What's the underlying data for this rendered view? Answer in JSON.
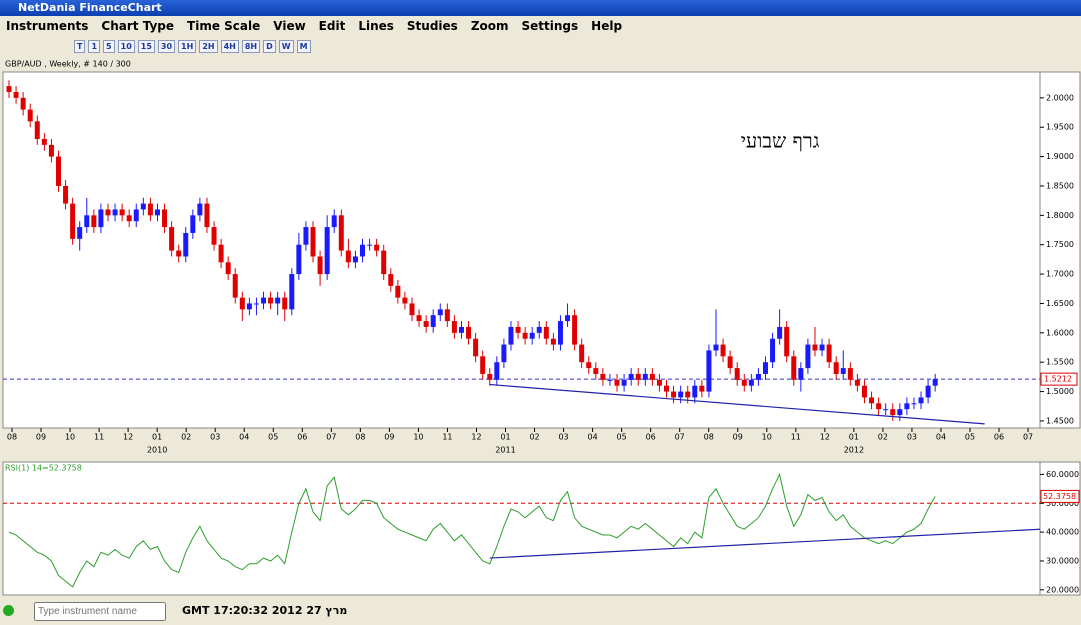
{
  "window": {
    "title": "NetDania FinanceChart"
  },
  "menu": [
    "Instruments",
    "Chart Type",
    "Time Scale",
    "View",
    "Edit",
    "Lines",
    "Studies",
    "Zoom",
    "Settings",
    "Help"
  ],
  "periods": [
    "T",
    "1",
    "5",
    "10",
    "15",
    "30",
    "1H",
    "2H",
    "4H",
    "8H",
    "D",
    "W",
    "M"
  ],
  "status": {
    "placeholder": "Type instrument name",
    "clock": "GMT 17:20:32 2012 מרץ 27"
  },
  "chart_data": {
    "type": "candlestick",
    "title": "GBP/AUD , Weekly, # 140 / 300",
    "annotation": "גרף שבועי",
    "up_color": "#1a1aff",
    "down_color": "#e00000",
    "ylim": [
      1.438,
      2.044
    ],
    "yticks": [
      {
        "value": 1.45,
        "label": "1.4500"
      },
      {
        "value": 1.5,
        "label": "1.5000"
      },
      {
        "value": 1.55,
        "label": "1.5500"
      },
      {
        "value": 1.6,
        "label": "1.6000"
      },
      {
        "value": 1.65,
        "label": "1.6500"
      },
      {
        "value": 1.7,
        "label": "1.7000"
      },
      {
        "value": 1.75,
        "label": "1.7500"
      },
      {
        "value": 1.8,
        "label": "1.8000"
      },
      {
        "value": 1.85,
        "label": "1.8500"
      },
      {
        "value": 1.9,
        "label": "1.9000"
      },
      {
        "value": 1.95,
        "label": "1.9500"
      },
      {
        "value": 2,
        "label": "2.0000"
      }
    ],
    "last_price": 1.5212,
    "months": [
      "08",
      "09",
      "10",
      "11",
      "12",
      "01",
      "02",
      "03",
      "04",
      "05",
      "06",
      "07",
      "08",
      "09",
      "10",
      "11",
      "12",
      "01",
      "02",
      "03",
      "04",
      "05",
      "06",
      "07",
      "08",
      "09",
      "10",
      "11",
      "12",
      "01",
      "02",
      "03",
      "04",
      "05",
      "06",
      "07"
    ],
    "years": [
      "2010",
      "2011",
      "2012"
    ],
    "trendline": {
      "start": [
        68,
        1.512
      ],
      "end": [
        138,
        1.445
      ]
    },
    "ohlc": [
      [
        2.02,
        2.03,
        2.0,
        2.01
      ],
      [
        2.01,
        2.02,
        1.99,
        2.0
      ],
      [
        2.0,
        2.01,
        1.97,
        1.98
      ],
      [
        1.98,
        1.99,
        1.95,
        1.96
      ],
      [
        1.96,
        1.97,
        1.92,
        1.93
      ],
      [
        1.93,
        1.94,
        1.91,
        1.92
      ],
      [
        1.92,
        1.93,
        1.89,
        1.9
      ],
      [
        1.9,
        1.91,
        1.84,
        1.85
      ],
      [
        1.85,
        1.86,
        1.81,
        1.82
      ],
      [
        1.82,
        1.83,
        1.75,
        1.76
      ],
      [
        1.76,
        1.79,
        1.74,
        1.78
      ],
      [
        1.78,
        1.83,
        1.77,
        1.8
      ],
      [
        1.8,
        1.81,
        1.77,
        1.78
      ],
      [
        1.78,
        1.82,
        1.77,
        1.81
      ],
      [
        1.81,
        1.82,
        1.79,
        1.8
      ],
      [
        1.8,
        1.82,
        1.79,
        1.81
      ],
      [
        1.81,
        1.82,
        1.79,
        1.8
      ],
      [
        1.8,
        1.81,
        1.78,
        1.79
      ],
      [
        1.79,
        1.82,
        1.78,
        1.81
      ],
      [
        1.81,
        1.83,
        1.8,
        1.82
      ],
      [
        1.82,
        1.83,
        1.79,
        1.8
      ],
      [
        1.8,
        1.82,
        1.79,
        1.81
      ],
      [
        1.81,
        1.82,
        1.77,
        1.78
      ],
      [
        1.78,
        1.79,
        1.73,
        1.74
      ],
      [
        1.74,
        1.75,
        1.72,
        1.73
      ],
      [
        1.73,
        1.78,
        1.72,
        1.77
      ],
      [
        1.77,
        1.81,
        1.76,
        1.8
      ],
      [
        1.8,
        1.83,
        1.79,
        1.82
      ],
      [
        1.82,
        1.83,
        1.77,
        1.78
      ],
      [
        1.78,
        1.79,
        1.74,
        1.75
      ],
      [
        1.75,
        1.76,
        1.71,
        1.72
      ],
      [
        1.72,
        1.73,
        1.69,
        1.7
      ],
      [
        1.7,
        1.71,
        1.65,
        1.66
      ],
      [
        1.66,
        1.67,
        1.62,
        1.64
      ],
      [
        1.64,
        1.66,
        1.63,
        1.65
      ],
      [
        1.65,
        1.66,
        1.63,
        1.65
      ],
      [
        1.65,
        1.67,
        1.64,
        1.66
      ],
      [
        1.66,
        1.67,
        1.64,
        1.65
      ],
      [
        1.65,
        1.67,
        1.63,
        1.66
      ],
      [
        1.66,
        1.67,
        1.62,
        1.64
      ],
      [
        1.64,
        1.71,
        1.63,
        1.7
      ],
      [
        1.7,
        1.77,
        1.69,
        1.75
      ],
      [
        1.75,
        1.79,
        1.74,
        1.78
      ],
      [
        1.78,
        1.79,
        1.72,
        1.73
      ],
      [
        1.73,
        1.74,
        1.68,
        1.7
      ],
      [
        1.7,
        1.8,
        1.69,
        1.78
      ],
      [
        1.78,
        1.81,
        1.77,
        1.8
      ],
      [
        1.8,
        1.81,
        1.73,
        1.74
      ],
      [
        1.74,
        1.76,
        1.71,
        1.72
      ],
      [
        1.72,
        1.74,
        1.71,
        1.73
      ],
      [
        1.73,
        1.76,
        1.72,
        1.75
      ],
      [
        1.75,
        1.76,
        1.74,
        1.75
      ],
      [
        1.75,
        1.76,
        1.73,
        1.74
      ],
      [
        1.74,
        1.75,
        1.69,
        1.7
      ],
      [
        1.7,
        1.71,
        1.67,
        1.68
      ],
      [
        1.68,
        1.69,
        1.65,
        1.66
      ],
      [
        1.66,
        1.67,
        1.64,
        1.65
      ],
      [
        1.65,
        1.66,
        1.62,
        1.63
      ],
      [
        1.63,
        1.64,
        1.61,
        1.62
      ],
      [
        1.62,
        1.63,
        1.6,
        1.61
      ],
      [
        1.61,
        1.64,
        1.6,
        1.63
      ],
      [
        1.63,
        1.65,
        1.62,
        1.64
      ],
      [
        1.64,
        1.65,
        1.61,
        1.62
      ],
      [
        1.62,
        1.63,
        1.59,
        1.6
      ],
      [
        1.6,
        1.62,
        1.59,
        1.61
      ],
      [
        1.61,
        1.62,
        1.58,
        1.59
      ],
      [
        1.59,
        1.6,
        1.55,
        1.56
      ],
      [
        1.56,
        1.57,
        1.52,
        1.53
      ],
      [
        1.53,
        1.54,
        1.51,
        1.52
      ],
      [
        1.52,
        1.56,
        1.51,
        1.55
      ],
      [
        1.55,
        1.59,
        1.54,
        1.58
      ],
      [
        1.58,
        1.62,
        1.57,
        1.61
      ],
      [
        1.61,
        1.62,
        1.59,
        1.6
      ],
      [
        1.6,
        1.61,
        1.58,
        1.59
      ],
      [
        1.59,
        1.61,
        1.58,
        1.6
      ],
      [
        1.6,
        1.62,
        1.59,
        1.61
      ],
      [
        1.61,
        1.62,
        1.58,
        1.59
      ],
      [
        1.59,
        1.6,
        1.57,
        1.58
      ],
      [
        1.58,
        1.63,
        1.57,
        1.62
      ],
      [
        1.62,
        1.65,
        1.61,
        1.63
      ],
      [
        1.63,
        1.64,
        1.57,
        1.58
      ],
      [
        1.58,
        1.59,
        1.54,
        1.55
      ],
      [
        1.55,
        1.56,
        1.53,
        1.54
      ],
      [
        1.54,
        1.55,
        1.52,
        1.53
      ],
      [
        1.53,
        1.54,
        1.51,
        1.52
      ],
      [
        1.52,
        1.53,
        1.51,
        1.52
      ],
      [
        1.52,
        1.53,
        1.5,
        1.51
      ],
      [
        1.51,
        1.53,
        1.5,
        1.52
      ],
      [
        1.52,
        1.54,
        1.51,
        1.53
      ],
      [
        1.53,
        1.54,
        1.51,
        1.52
      ],
      [
        1.52,
        1.54,
        1.51,
        1.53
      ],
      [
        1.53,
        1.54,
        1.51,
        1.52
      ],
      [
        1.52,
        1.53,
        1.5,
        1.51
      ],
      [
        1.51,
        1.52,
        1.49,
        1.5
      ],
      [
        1.5,
        1.51,
        1.48,
        1.49
      ],
      [
        1.49,
        1.51,
        1.48,
        1.5
      ],
      [
        1.5,
        1.51,
        1.48,
        1.49
      ],
      [
        1.49,
        1.52,
        1.48,
        1.51
      ],
      [
        1.51,
        1.52,
        1.49,
        1.5
      ],
      [
        1.5,
        1.58,
        1.49,
        1.57
      ],
      [
        1.57,
        1.64,
        1.56,
        1.58
      ],
      [
        1.58,
        1.59,
        1.55,
        1.56
      ],
      [
        1.56,
        1.57,
        1.53,
        1.54
      ],
      [
        1.54,
        1.55,
        1.51,
        1.52
      ],
      [
        1.52,
        1.53,
        1.5,
        1.51
      ],
      [
        1.51,
        1.53,
        1.5,
        1.52
      ],
      [
        1.52,
        1.54,
        1.51,
        1.53
      ],
      [
        1.53,
        1.56,
        1.52,
        1.55
      ],
      [
        1.55,
        1.6,
        1.54,
        1.59
      ],
      [
        1.59,
        1.64,
        1.58,
        1.61
      ],
      [
        1.61,
        1.62,
        1.55,
        1.56
      ],
      [
        1.56,
        1.57,
        1.51,
        1.52
      ],
      [
        1.52,
        1.55,
        1.5,
        1.54
      ],
      [
        1.54,
        1.59,
        1.53,
        1.58
      ],
      [
        1.58,
        1.61,
        1.56,
        1.57
      ],
      [
        1.57,
        1.59,
        1.56,
        1.58
      ],
      [
        1.58,
        1.59,
        1.54,
        1.55
      ],
      [
        1.55,
        1.56,
        1.52,
        1.53
      ],
      [
        1.53,
        1.57,
        1.52,
        1.54
      ],
      [
        1.54,
        1.55,
        1.51,
        1.52
      ],
      [
        1.52,
        1.53,
        1.5,
        1.51
      ],
      [
        1.51,
        1.52,
        1.48,
        1.49
      ],
      [
        1.49,
        1.5,
        1.47,
        1.48
      ],
      [
        1.48,
        1.49,
        1.46,
        1.47
      ],
      [
        1.47,
        1.48,
        1.46,
        1.47
      ],
      [
        1.47,
        1.48,
        1.45,
        1.46
      ],
      [
        1.46,
        1.48,
        1.45,
        1.47
      ],
      [
        1.47,
        1.49,
        1.46,
        1.48
      ],
      [
        1.48,
        1.49,
        1.47,
        1.48
      ],
      [
        1.48,
        1.5,
        1.47,
        1.49
      ],
      [
        1.49,
        1.52,
        1.48,
        1.51
      ],
      [
        1.51,
        1.53,
        1.5,
        1.5212
      ]
    ],
    "rsi": {
      "label": "RSI(1) 14=52.3758",
      "color": "#2e9e2e",
      "last": 52.3758,
      "level": 50,
      "ylim": [
        18.2,
        64.3
      ],
      "yticks": [
        {
          "value": 20,
          "label": "20.0000"
        },
        {
          "value": 30,
          "label": "30.0000"
        },
        {
          "value": 40,
          "label": "40.0000"
        },
        {
          "value": 50,
          "label": "50.0000"
        },
        {
          "value": 60,
          "label": "60.0000"
        }
      ],
      "trendline": {
        "start": [
          68,
          31
        ],
        "end": [
          151,
          41
        ]
      },
      "values": [
        40,
        39,
        37,
        35,
        33,
        32,
        30,
        25,
        23,
        21,
        26,
        30,
        28,
        33,
        32,
        34,
        32,
        31,
        35,
        37,
        34,
        35,
        30,
        27,
        26,
        33,
        38,
        42,
        37,
        34,
        31,
        30,
        28,
        27,
        29,
        29,
        31,
        30,
        32,
        29,
        40,
        50,
        55,
        47,
        44,
        56,
        59,
        48,
        46,
        48,
        51,
        51,
        50,
        45,
        43,
        41,
        40,
        39,
        38,
        37,
        41,
        43,
        40,
        37,
        39,
        36,
        33,
        30,
        29,
        35,
        42,
        48,
        47,
        45,
        47,
        49,
        45,
        44,
        51,
        54,
        45,
        42,
        41,
        40,
        39,
        39,
        38,
        40,
        42,
        41,
        43,
        41,
        39,
        37,
        35,
        38,
        36,
        40,
        38,
        52,
        55,
        50,
        46,
        42,
        41,
        43,
        45,
        49,
        55,
        60,
        49,
        42,
        46,
        53,
        51,
        52,
        47,
        44,
        46,
        42,
        40,
        38,
        37,
        36,
        37,
        36,
        38,
        40,
        41,
        43,
        48,
        52.3758
      ]
    }
  }
}
